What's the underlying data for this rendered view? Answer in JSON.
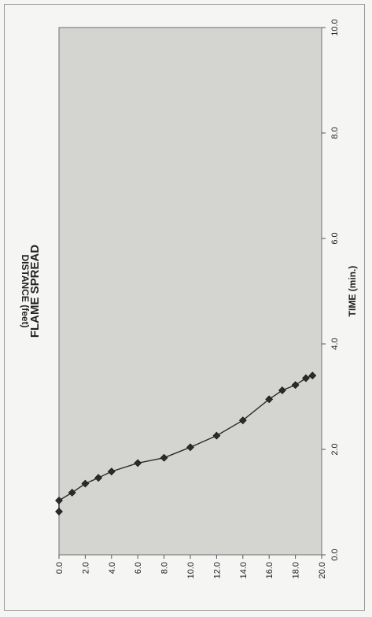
{
  "chart_data": {
    "type": "scatter",
    "title": "FLAME SPREAD",
    "xlabel": "TIME (min.)",
    "ylabel": "DISTANCE (feet)",
    "xlim": [
      0,
      10
    ],
    "ylim": [
      0,
      20
    ],
    "x_ticks": [
      "0.0",
      "2.0",
      "4.0",
      "6.0",
      "8.0",
      "10.0"
    ],
    "y_ticks": [
      "0.0",
      "2.0",
      "4.0",
      "6.0",
      "8.0",
      "10.0",
      "12.0",
      "14.0",
      "16.0",
      "18.0",
      "20.0"
    ],
    "grid": false,
    "legend": "none",
    "marker": "diamond",
    "line": true,
    "colors": {
      "plot_background": "#d4d4d1",
      "series": "#2b2b2b"
    },
    "series": [
      {
        "points": [
          {
            "x": 0.82,
            "y": 0.0
          },
          {
            "x": 1.03,
            "y": 0.0
          },
          {
            "x": 1.18,
            "y": 1.0
          },
          {
            "x": 1.35,
            "y": 2.0
          },
          {
            "x": 1.46,
            "y": 3.0
          },
          {
            "x": 1.58,
            "y": 4.0
          },
          {
            "x": 1.74,
            "y": 6.0
          },
          {
            "x": 1.84,
            "y": 8.0
          },
          {
            "x": 2.04,
            "y": 10.0
          },
          {
            "x": 2.26,
            "y": 12.0
          },
          {
            "x": 2.55,
            "y": 14.0
          },
          {
            "x": 2.95,
            "y": 16.0
          },
          {
            "x": 3.12,
            "y": 17.0
          },
          {
            "x": 3.22,
            "y": 18.0
          },
          {
            "x": 3.35,
            "y": 18.8
          },
          {
            "x": 3.4,
            "y": 19.3
          }
        ]
      }
    ]
  }
}
